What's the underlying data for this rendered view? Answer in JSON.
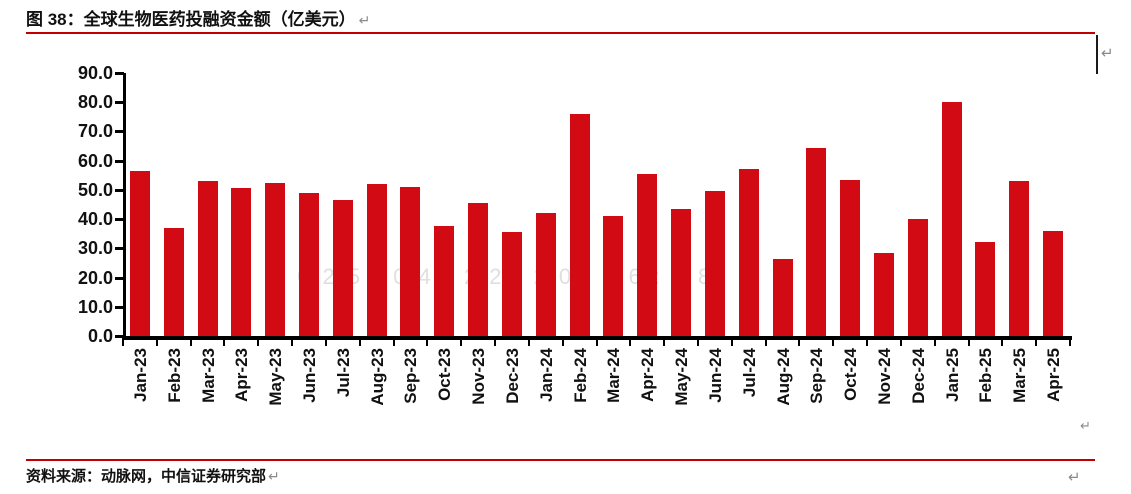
{
  "document": {
    "figure_title": "图 38：全球生物医药投融资金额（亿美元）",
    "pilcrow": "↵",
    "source_line": "资料来源：动脉网，中信证券研究部",
    "accent_color": "#c00000"
  },
  "chart_data": {
    "type": "bar",
    "title": "全球生物医药投融资金额（亿美元）",
    "categories": [
      "Jan-23",
      "Feb-23",
      "Mar-23",
      "Apr-23",
      "May-23",
      "Jun-23",
      "Jul-23",
      "Aug-23",
      "Sep-23",
      "Oct-23",
      "Nov-23",
      "Dec-23",
      "Jan-24",
      "Feb-24",
      "Mar-24",
      "Apr-24",
      "May-24",
      "Jun-24",
      "Jul-24",
      "Aug-24",
      "Sep-24",
      "Oct-24",
      "Nov-24",
      "Dec-24",
      "Jan-25",
      "Feb-25",
      "Mar-25",
      "Apr-25"
    ],
    "values": [
      56.5,
      37.0,
      53.0,
      50.5,
      52.5,
      49.0,
      46.5,
      52.0,
      51.0,
      37.5,
      45.5,
      35.5,
      42.0,
      76.0,
      41.0,
      55.5,
      43.5,
      49.5,
      57.0,
      26.5,
      64.5,
      53.5,
      28.5,
      40.0,
      80.0,
      32.0,
      53.0,
      36.0
    ],
    "xlabel": "",
    "ylabel": "",
    "ylim": [
      0,
      90
    ],
    "y_tick_labels": [
      "0.0",
      "10.0",
      "20.0",
      "30.0",
      "40.0",
      "50.0",
      "60.0",
      "70.0",
      "80.0",
      "90.0"
    ],
    "x_label_rotation": -90,
    "grid": false,
    "legend": false,
    "bar_color": "#d20a14",
    "axis_color": "#000000",
    "watermark": "2025-04-22 20:56:18"
  }
}
